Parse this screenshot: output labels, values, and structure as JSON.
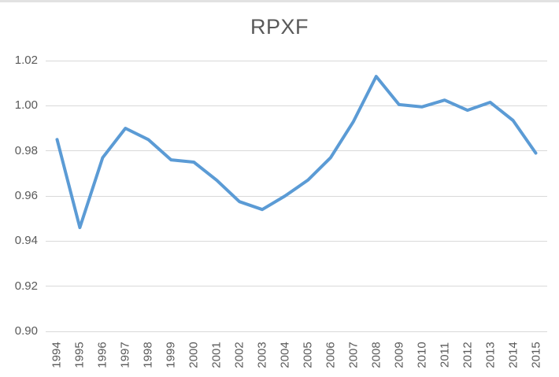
{
  "chart_data": {
    "type": "line",
    "title": "RPXF",
    "categories": [
      "1994",
      "1995",
      "1996",
      "1997",
      "1998",
      "1999",
      "2000",
      "2001",
      "2002",
      "2003",
      "2004",
      "2005",
      "2006",
      "2007",
      "2008",
      "2009",
      "2010",
      "2011",
      "2012",
      "2013",
      "2014",
      "2015"
    ],
    "values": [
      0.985,
      0.946,
      0.977,
      0.99,
      0.985,
      0.976,
      0.975,
      0.967,
      0.9575,
      0.954,
      0.96,
      0.967,
      0.977,
      0.993,
      1.013,
      1.0005,
      0.9995,
      1.0025,
      0.998,
      1.0015,
      0.9935,
      0.979
    ],
    "xlabel": "",
    "ylabel": "",
    "ylim": [
      0.9,
      1.02
    ],
    "ytick_labels": [
      "1.02",
      "1.00",
      "0.98",
      "0.96",
      "0.94",
      "0.92",
      "0.90"
    ],
    "grid": true,
    "legend_position": "none",
    "series_color": "#5B9BD5",
    "gridline_color": "#D9D9D9",
    "text_color": "#595959",
    "background_color": "#FFFFFF"
  }
}
